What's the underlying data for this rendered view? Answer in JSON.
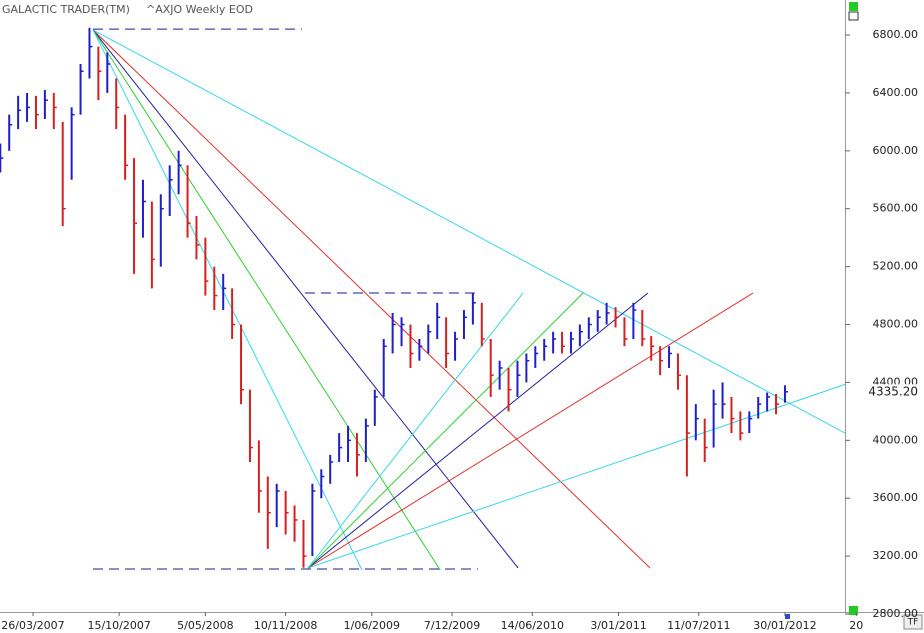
{
  "chart_data": {
    "type": "ohlc",
    "title": "GALACTIC TRADER(TM)",
    "subtitle": "^AXJO Weekly EOD",
    "up_color": "#1f1fc8",
    "down_color": "#d42020",
    "xlim": [
      -11.1,
      273.2
    ],
    "ylim": [
      2814,
      7042
    ],
    "xticks": [
      {
        "value": 0,
        "label": "26/03/2007"
      },
      {
        "value": 29,
        "label": "15/10/2007"
      },
      {
        "value": 58,
        "label": "5/05/2008"
      },
      {
        "value": 85,
        "label": "10/11/2008"
      },
      {
        "value": 114,
        "label": "1/06/2009"
      },
      {
        "value": 141,
        "label": "7/12/2009"
      },
      {
        "value": 168,
        "label": "14/06/2010"
      },
      {
        "value": 197,
        "label": "3/01/2011"
      },
      {
        "value": 224,
        "label": "11/07/2011"
      },
      {
        "value": 253,
        "label": "30/01/2012"
      },
      {
        "value": 277,
        "label": "20"
      }
    ],
    "yticks": [
      {
        "value": 2800,
        "label": "2800.00"
      },
      {
        "value": 3200,
        "label": "3200.00"
      },
      {
        "value": 3600,
        "label": "3600.00"
      },
      {
        "value": 4000,
        "label": "4000.00"
      },
      {
        "value": 4400,
        "label": "4400.00"
      },
      {
        "value": 4800,
        "label": "4800.00"
      },
      {
        "value": 5200,
        "label": "5200.00"
      },
      {
        "value": 5600,
        "label": "5600.00"
      },
      {
        "value": 6000,
        "label": "6000.00"
      },
      {
        "value": 6400,
        "label": "6400.00"
      },
      {
        "value": 6800,
        "label": "6800.00"
      }
    ],
    "last_price": {
      "value": 4335.2,
      "label": "4335.20"
    },
    "x": [
      -11,
      -8,
      -5,
      -2,
      1,
      4,
      7,
      10,
      13,
      16,
      19,
      22,
      25,
      28,
      31,
      34,
      37,
      40,
      43,
      46,
      49,
      52,
      55,
      58,
      61,
      64,
      67,
      70,
      73,
      76,
      79,
      82,
      85,
      88,
      91,
      94,
      97,
      100,
      103,
      106,
      109,
      112,
      115,
      118,
      121,
      124,
      127,
      130,
      133,
      136,
      139,
      142,
      145,
      148,
      151,
      154,
      157,
      160,
      163,
      166,
      169,
      172,
      175,
      178,
      181,
      184,
      187,
      190,
      193,
      196,
      199,
      202,
      205,
      208,
      211,
      214,
      217,
      220,
      223,
      226,
      229,
      232,
      235,
      238,
      241,
      244,
      247,
      250,
      253
    ],
    "high": [
      6050,
      6250,
      6380,
      6400,
      6380,
      6420,
      6400,
      6200,
      6300,
      6600,
      6850,
      6720,
      6680,
      6500,
      6250,
      5950,
      5800,
      5650,
      5700,
      5900,
      6000,
      5900,
      5550,
      5400,
      5200,
      5150,
      5050,
      4800,
      4350,
      4000,
      3750,
      3700,
      3650,
      3550,
      3450,
      3700,
      3800,
      3900,
      4050,
      4100,
      4050,
      4150,
      4350,
      4700,
      4880,
      4850,
      4800,
      4700,
      4800,
      4950,
      4850,
      4750,
      4900,
      5020,
      4950,
      4700,
      4550,
      4500,
      4550,
      4600,
      4650,
      4700,
      4750,
      4750,
      4750,
      4800,
      4850,
      4900,
      4950,
      4920,
      4850,
      4950,
      4900,
      4720,
      4650,
      4650,
      4600,
      4450,
      4250,
      4150,
      4350,
      4400,
      4300,
      4200,
      4200,
      4300,
      4330,
      4320,
      4380
    ],
    "low": [
      5850,
      6000,
      6150,
      6200,
      6150,
      6220,
      6150,
      5480,
      5800,
      6250,
      6500,
      6350,
      6400,
      6150,
      5800,
      5150,
      5400,
      5050,
      5200,
      5550,
      5700,
      5400,
      5250,
      5000,
      4900,
      4900,
      4700,
      4250,
      3850,
      3500,
      3250,
      3400,
      3350,
      3300,
      3120,
      3200,
      3600,
      3700,
      3850,
      3850,
      3750,
      3850,
      4100,
      4300,
      4600,
      4650,
      4500,
      4550,
      4600,
      4700,
      4500,
      4550,
      4700,
      4800,
      4650,
      4300,
      4350,
      4200,
      4300,
      4400,
      4500,
      4550,
      4600,
      4600,
      4600,
      4650,
      4700,
      4750,
      4800,
      4780,
      4650,
      4700,
      4650,
      4550,
      4450,
      4500,
      4350,
      3750,
      4000,
      3850,
      3950,
      4150,
      4050,
      4000,
      4050,
      4150,
      4200,
      4180,
      4260
    ],
    "close": [
      5950,
      6180,
      6280,
      6300,
      6250,
      6350,
      6300,
      5600,
      6250,
      6550,
      6720,
      6550,
      6600,
      6300,
      5900,
      5500,
      5650,
      5250,
      5600,
      5800,
      5900,
      5500,
      5350,
      5100,
      5000,
      5050,
      4800,
      4350,
      3950,
      3650,
      3500,
      3650,
      3500,
      3450,
      3200,
      3650,
      3750,
      3850,
      3950,
      4000,
      3900,
      4100,
      4300,
      4650,
      4800,
      4800,
      4600,
      4650,
      4750,
      4850,
      4600,
      4700,
      4850,
      4950,
      4700,
      4450,
      4500,
      4350,
      4450,
      4550,
      4600,
      4650,
      4700,
      4650,
      4700,
      4750,
      4800,
      4850,
      4880,
      4850,
      4700,
      4900,
      4700,
      4650,
      4550,
      4600,
      4450,
      4050,
      4150,
      3950,
      4250,
      4250,
      4150,
      4050,
      4150,
      4250,
      4300,
      4250,
      4335.2
    ],
    "annotations": [
      {
        "x1": 20.2,
        "y1": 6841,
        "x2": 90.5,
        "y2": 6841,
        "color": "#1a1a8c",
        "dashed": true
      },
      {
        "x1": 20.2,
        "y1": 3111,
        "x2": 149.7,
        "y2": 3111,
        "color": "#1a1a8c",
        "dashed": true
      },
      {
        "x1": 91.5,
        "y1": 5018,
        "x2": 149.7,
        "y2": 5018,
        "color": "#1a1a8c",
        "dashed": true
      },
      {
        "x1": 20.2,
        "y1": 6835,
        "x2": 277.6,
        "y2": 4002,
        "color": "#3ad6e6",
        "dashed": false
      },
      {
        "x1": 20.2,
        "y1": 6835,
        "x2": 207.6,
        "y2": 3118,
        "color": "#e03030",
        "dashed": false
      },
      {
        "x1": 20.2,
        "y1": 6835,
        "x2": 163.2,
        "y2": 3118,
        "color": "#2020a0",
        "dashed": false
      },
      {
        "x1": 20.2,
        "y1": 6835,
        "x2": 137,
        "y2": 3104,
        "color": "#33cc33",
        "dashed": false
      },
      {
        "x1": 20.2,
        "y1": 6835,
        "x2": 110.7,
        "y2": 3104,
        "color": "#3ad6e6",
        "dashed": false
      },
      {
        "x1": 92.5,
        "y1": 3118,
        "x2": 277.6,
        "y2": 4417,
        "color": "#3ad6e6",
        "dashed": false
      },
      {
        "x1": 92.5,
        "y1": 3118,
        "x2": 242.3,
        "y2": 5018,
        "color": "#e03030",
        "dashed": false
      },
      {
        "x1": 92.5,
        "y1": 3118,
        "x2": 206.9,
        "y2": 5018,
        "color": "#2020a0",
        "dashed": false
      },
      {
        "x1": 92.5,
        "y1": 3118,
        "x2": 185.1,
        "y2": 5018,
        "color": "#33cc33",
        "dashed": false
      },
      {
        "x1": 92.5,
        "y1": 3118,
        "x2": 164.9,
        "y2": 5018,
        "color": "#3ad6e6",
        "dashed": false
      }
    ],
    "button": "TF"
  }
}
